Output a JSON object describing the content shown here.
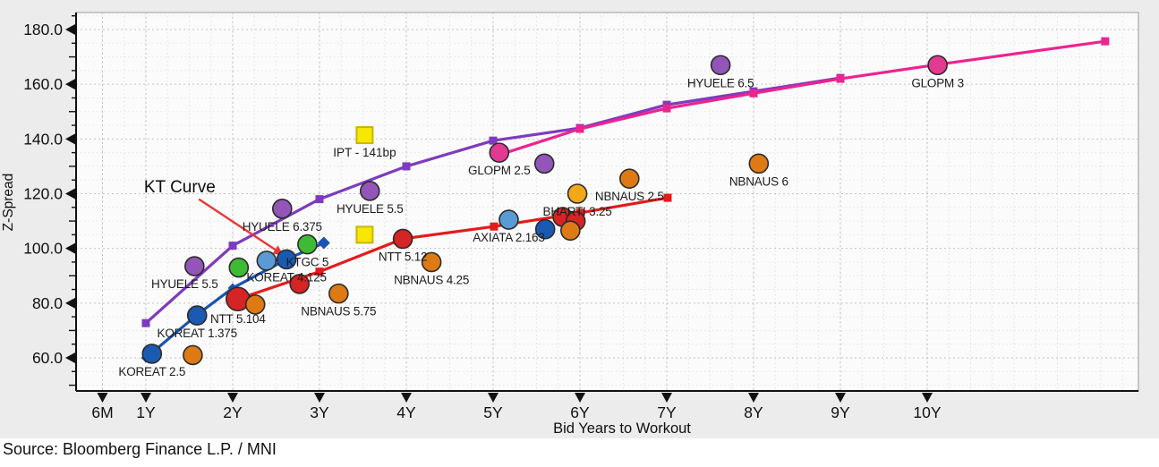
{
  "source_note": "Source: Bloomberg Finance L.P. / MNI",
  "chart_data": {
    "type": "scatter",
    "title": "",
    "xlabel": "Bid Years to Workout",
    "ylabel": "Z-Spread",
    "xlim": [
      0.2,
      12.4
    ],
    "ylim": [
      48,
      186
    ],
    "grid": "dotted",
    "legend_position": "none",
    "x_ticks": [
      {
        "label": "6M",
        "x": 0.5
      },
      {
        "label": "1Y",
        "x": 1
      },
      {
        "label": "2Y",
        "x": 2
      },
      {
        "label": "3Y",
        "x": 3
      },
      {
        "label": "4Y",
        "x": 4
      },
      {
        "label": "5Y",
        "x": 5
      },
      {
        "label": "6Y",
        "x": 6
      },
      {
        "label": "7Y",
        "x": 7
      },
      {
        "label": "8Y",
        "x": 8
      },
      {
        "label": "9Y",
        "x": 9
      },
      {
        "label": "10Y",
        "x": 10
      }
    ],
    "y_ticks": [
      {
        "label": "60.0",
        "y": 60
      },
      {
        "label": "80.0",
        "y": 80
      },
      {
        "label": "100.0",
        "y": 100
      },
      {
        "label": "120.0",
        "y": 120
      },
      {
        "label": "140.0",
        "y": 140
      },
      {
        "label": "160.0",
        "y": 160
      },
      {
        "label": "180.0",
        "y": 180
      }
    ],
    "colors": {
      "blue": "#1b5ab2",
      "lightblue": "#5b9bd5",
      "green": "#3fbb33",
      "red": "#d62323",
      "red_line": "#e31b1b",
      "orange": "#dd7a14",
      "amber": "#f2a918",
      "purple": "#9355b8",
      "purple_line": "#7e3bbd",
      "pink": "#e23a93",
      "pink_line": "#ec2391",
      "blue_line": "#1a53b0",
      "yellow": "#f6e800",
      "yellow_edge": "#c9b50a",
      "annotation_arrow": "#e53935"
    },
    "curves": [
      {
        "name": "HYUELE curve",
        "color": "purple_line",
        "marker": "square",
        "points": [
          [
            1,
            72.7
          ],
          [
            2,
            101
          ],
          [
            3,
            118
          ],
          [
            4,
            130
          ],
          [
            5,
            139.4
          ],
          [
            6,
            144
          ],
          [
            7,
            152.5
          ],
          [
            8,
            157.4
          ],
          [
            9,
            162.3
          ]
        ]
      },
      {
        "name": "GLOPM curve",
        "color": "pink_line",
        "marker": "square",
        "points": [
          [
            5.05,
            134
          ],
          [
            6,
            143.7
          ],
          [
            7,
            151.2
          ],
          [
            8,
            156.7
          ],
          [
            9,
            162
          ],
          [
            10.12,
            167.2
          ],
          [
            12.05,
            175.7
          ]
        ]
      },
      {
        "name": "NTT curve",
        "color": "red_line",
        "marker": "square",
        "points": [
          [
            2.06,
            81.5
          ],
          [
            3,
            91.5
          ],
          [
            3.96,
            103.5
          ],
          [
            5.01,
            108
          ],
          [
            6,
            113
          ],
          [
            7.01,
            118.5
          ]
        ]
      },
      {
        "name": "KT curve",
        "color": "blue_line",
        "marker": "diamond",
        "points": [
          [
            1,
            60
          ],
          [
            1.6,
            76
          ],
          [
            2,
            85.5
          ],
          [
            2.62,
            96
          ],
          [
            3.05,
            102
          ]
        ]
      }
    ],
    "points": [
      {
        "label": "KOREAT 2.5",
        "color": "blue",
        "x": 1.07,
        "y": 61.5
      },
      {
        "label": "",
        "color": "orange",
        "x": 1.54,
        "y": 61
      },
      {
        "label": "KOREAT 1.375",
        "color": "blue",
        "x": 1.59,
        "y": 75.5
      },
      {
        "label": "HYUELE 5.5",
        "color": "purple",
        "x": 1.56,
        "y": 93.5,
        "ldx": -11
      },
      {
        "label": "NTT 5.104",
        "color": "red",
        "x": 2.06,
        "y": 81.5,
        "r": 13
      },
      {
        "label": "",
        "color": "orange",
        "x": 2.26,
        "y": 79.5
      },
      {
        "label": "",
        "color": "green",
        "x": 2.07,
        "y": 93
      },
      {
        "label": "",
        "color": "lightblue",
        "x": 2.39,
        "y": 95.5
      },
      {
        "label": "KOREAT 4.125",
        "color": "blue",
        "x": 2.62,
        "y": 96
      },
      {
        "label": "KTGC 5",
        "color": "green",
        "x": 2.86,
        "y": 101.5
      },
      {
        "label": "HYUELE 6.375",
        "color": "purple",
        "x": 2.57,
        "y": 114.5
      },
      {
        "label": "",
        "color": "red",
        "x": 2.77,
        "y": 87
      },
      {
        "label": "NBNAUS 5.75",
        "color": "orange",
        "x": 3.22,
        "y": 83.5
      },
      {
        "label": "HYUELE 5.5",
        "color": "purple",
        "x": 3.58,
        "y": 121
      },
      {
        "label": "NTT 5.12",
        "color": "red",
        "x": 3.96,
        "y": 103.5
      },
      {
        "label": "NBNAUS 4.25",
        "color": "orange",
        "x": 4.29,
        "y": 95
      },
      {
        "label": "AXIATA 2.163",
        "color": "lightblue",
        "x": 5.18,
        "y": 110.5
      },
      {
        "label": "GLOPM 2.5",
        "color": "pink",
        "x": 5.07,
        "y": 135
      },
      {
        "label": "",
        "color": "purple",
        "x": 5.59,
        "y": 131
      },
      {
        "label": "",
        "color": "blue",
        "x": 5.6,
        "y": 107
      },
      {
        "label": "",
        "color": "red",
        "x": 5.8,
        "y": 111.5
      },
      {
        "label": "",
        "color": "red",
        "x": 5.95,
        "y": 110
      },
      {
        "label": "",
        "color": "orange",
        "x": 5.89,
        "y": 106.5
      },
      {
        "label": "BHARTI 3.25",
        "color": "amber",
        "x": 5.97,
        "y": 120
      },
      {
        "label": "NBNAUS 2.5",
        "color": "orange",
        "x": 6.57,
        "y": 125.5
      },
      {
        "label": "HYUELE 6.5",
        "color": "purple",
        "x": 7.62,
        "y": 167
      },
      {
        "label": "NBNAUS 6",
        "color": "orange",
        "x": 8.06,
        "y": 131
      },
      {
        "label": "GLOPM 3",
        "color": "pink",
        "x": 10.12,
        "y": 167
      }
    ],
    "ipt_markers": [
      {
        "label": "IPT - 141bp",
        "x": 3.52,
        "y": 141.4
      },
      {
        "label": "",
        "x": 3.52,
        "y": 105
      }
    ],
    "annotation": {
      "text": "KT Curve",
      "text_x": 1.39,
      "text_y": 122.5,
      "arrow_from_x": 1.61,
      "arrow_from_y": 118,
      "arrow_to_x": 2.55,
      "arrow_to_y": 98.3
    }
  }
}
